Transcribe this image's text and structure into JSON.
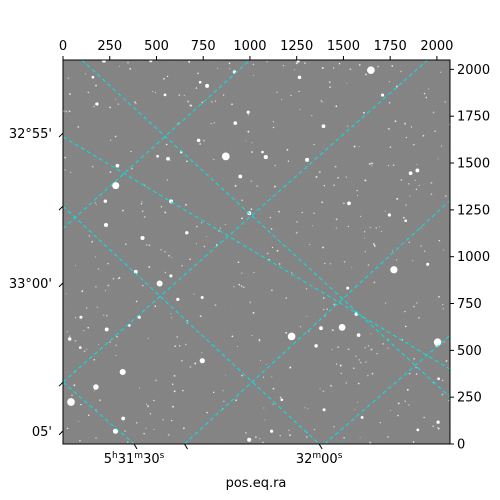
{
  "chart_data": {
    "type": "scatter",
    "description_kind": "astronomical-image-with-wcs-grid",
    "xlabel": "pos.eq.ra",
    "ylabel": "",
    "pixel_axes": {
      "x_ticks": [
        0,
        250,
        500,
        750,
        1000,
        1250,
        1500,
        1750,
        2000
      ],
      "x_tick_labels": [
        "0",
        "250",
        "500",
        "750",
        "1000",
        "1250",
        "1500",
        "1750",
        "2000"
      ],
      "xlim": [
        0,
        2070
      ],
      "y_ticks": [
        0,
        250,
        500,
        750,
        1000,
        1250,
        1500,
        1750,
        2000
      ],
      "y_tick_labels": [
        "0",
        "250",
        "500",
        "750",
        "1000",
        "1250",
        "1500",
        "1750",
        "2000"
      ],
      "ylim": [
        0,
        2050
      ]
    },
    "world_axes": {
      "ra_tick_labels": [
        {
          "text": "5h31m30s",
          "main": "5",
          "hsup": "h",
          "mid": "31",
          "msup": "m",
          "sec": "30",
          "ssup": "s",
          "x": 380
        },
        {
          "text": "32m00s",
          "main": "",
          "hsup": "",
          "mid": "32",
          "msup": "m",
          "sec": "00",
          "ssup": "s",
          "x": 1370
        }
      ],
      "dec_tick_labels": [
        {
          "text": "32°55'",
          "y": 1660
        },
        {
          "text": "33°00'",
          "y": 860
        },
        {
          "text": "05'",
          "y": 70
        }
      ]
    },
    "grid": {
      "color": "#00e5e5",
      "style": "dashed",
      "lines_down_right": [
        {
          "x0": 100,
          "y0": 2050,
          "x1": 2070,
          "y1": 850
        },
        {
          "x0": 0,
          "y0": 1270,
          "x1": 2070,
          "y1": 0
        }
      ],
      "lines_down_right_extra": [
        {
          "x0": 0,
          "y0": 1640,
          "x1": 2070,
          "y1": 400
        }
      ],
      "lines_up_right": [
        {
          "x0": 0,
          "y0": 1150,
          "x1": 1000,
          "y1": 2050
        },
        {
          "x0": 0,
          "y0": 330,
          "x1": 1950,
          "y1": 2050
        },
        {
          "x0": 650,
          "y0": 0,
          "x1": 2070,
          "y1": 1300
        },
        {
          "x0": 1400,
          "y0": 0,
          "x1": 2070,
          "y1": 580
        }
      ],
      "lines_down_left": [
        {
          "x0": 100,
          "y0": 2050,
          "x1": 2070,
          "y1": 250
        },
        {
          "x0": 0,
          "y0": 1270,
          "x1": 1370,
          "y1": 0
        },
        {
          "x0": 0,
          "y0": 330,
          "x1": 380,
          "y1": 0
        }
      ]
    },
    "image": {
      "background": "#7c7c7c",
      "star_color": "#ffffff"
    }
  }
}
